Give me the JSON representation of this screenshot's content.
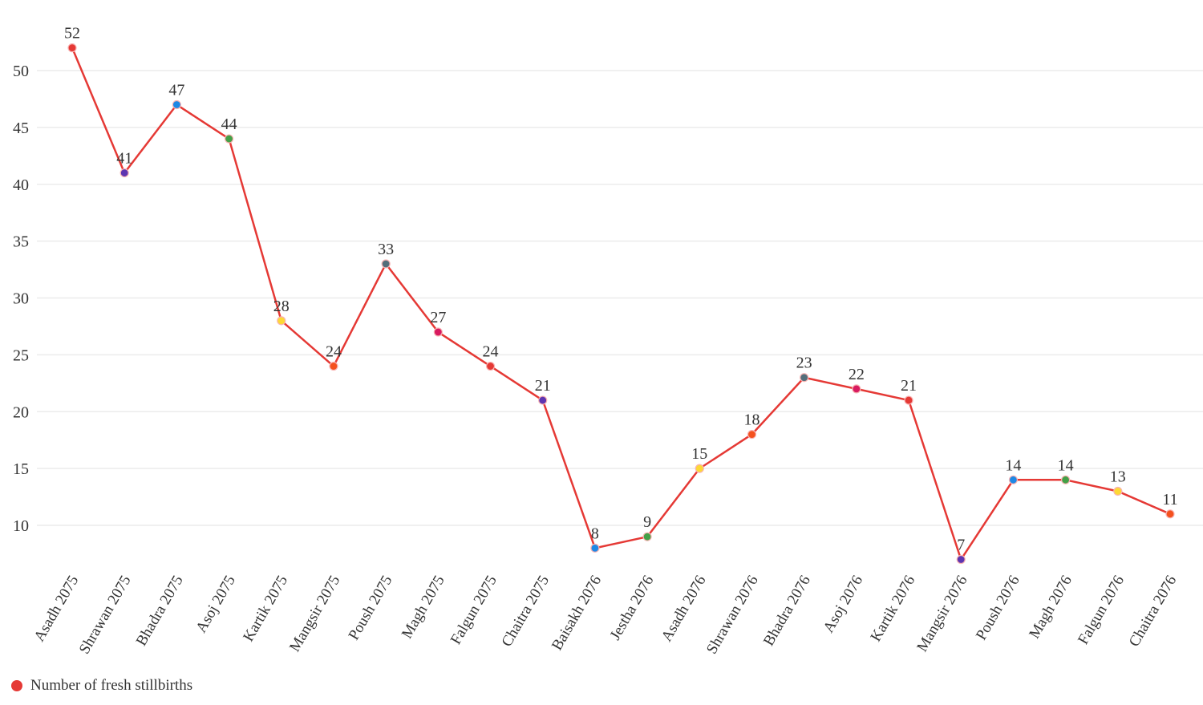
{
  "chart_data": {
    "type": "line",
    "title": "",
    "xlabel": "",
    "ylabel": "",
    "ylim": [
      7,
      50
    ],
    "yticks": [
      10,
      15,
      20,
      25,
      30,
      35,
      40,
      45,
      50
    ],
    "grid": true,
    "legend_position": "bottom-left",
    "categories": [
      "Asadh 2075",
      "Shrawan 2075",
      "Bhadra 2075",
      "Asoj 2075",
      "Kartik 2075",
      "Mangsir 2075",
      "Poush 2075",
      "Magh 2075",
      "Falgun 2075",
      "Chaitra 2075",
      "Baisakh 2076",
      "Jestha 2076",
      "Asadh 2076",
      "Shrawan 2076",
      "Bhadra 2076",
      "Asoj 2076",
      "Kartik 2076",
      "Mangsir 2076",
      "Poush 2076",
      "Magh 2076",
      "Falgun 2076",
      "Chaitra 2076"
    ],
    "series": [
      {
        "name": "Number of fresh stillbirths",
        "color": "#e53935",
        "values": [
          52,
          41,
          47,
          44,
          28,
          24,
          33,
          27,
          24,
          21,
          8,
          9,
          15,
          18,
          23,
          22,
          21,
          7,
          14,
          14,
          13,
          11
        ]
      }
    ],
    "marker_colors": [
      "#e53935",
      "#5e35b1",
      "#1e88e5",
      "#43a047",
      "#fdd835",
      "#f4511e",
      "#546e7a",
      "#d81b60"
    ]
  }
}
